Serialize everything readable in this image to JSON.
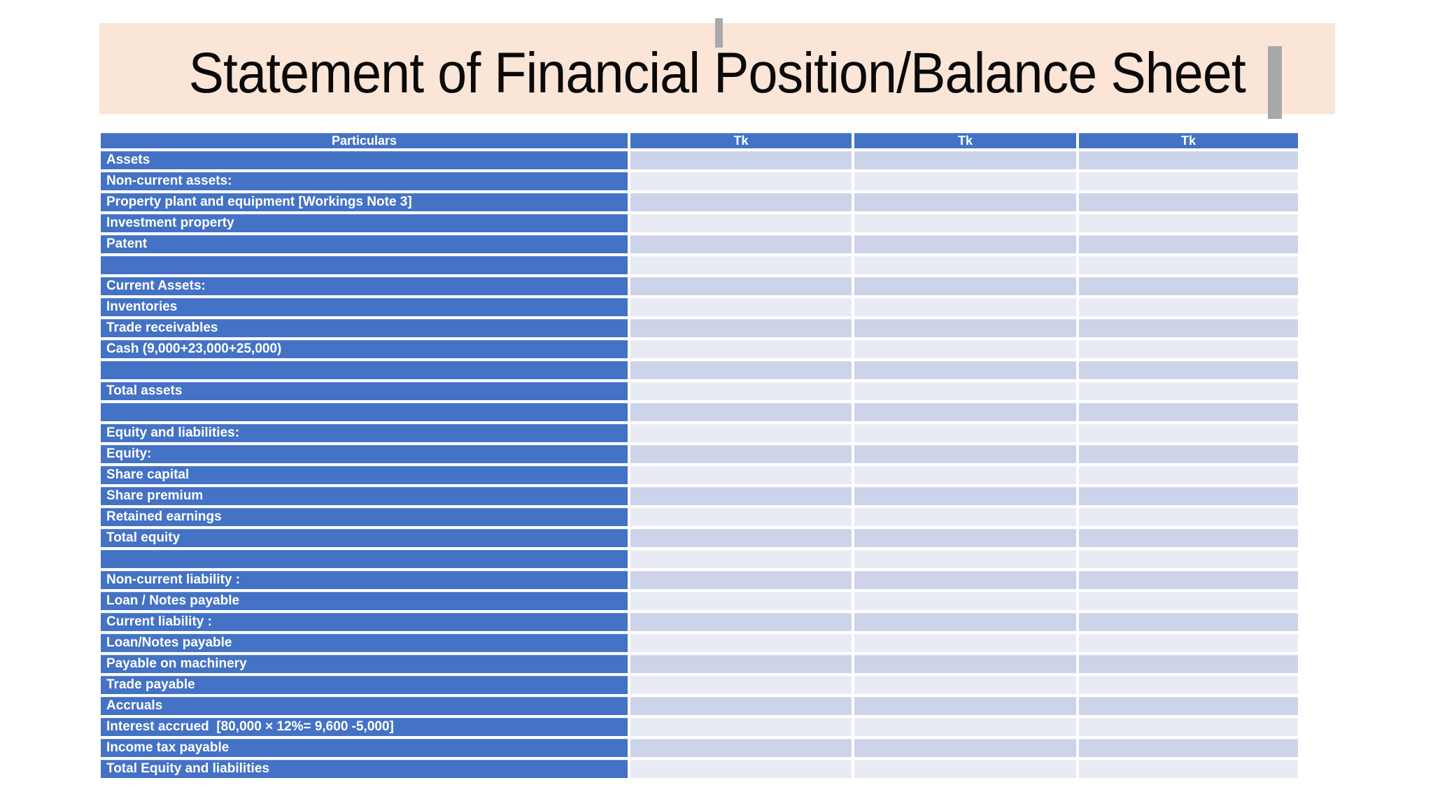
{
  "slide": {
    "title": "Statement of Financial Position/Balance Sheet",
    "title_band_color": "#fbe5d6",
    "marker_color": "#a9a9a9"
  },
  "table": {
    "header_bg": "#4472c4",
    "label_col_bg": "#4472c4",
    "band_dark": "#cdd3e8",
    "band_light": "#e9ebf4",
    "columns": [
      "Particulars",
      "Tk",
      "Tk",
      "Tk"
    ],
    "rows": [
      {
        "label": "Assets",
        "values": [
          "",
          "",
          ""
        ]
      },
      {
        "label": "Non-current assets:",
        "values": [
          "",
          "",
          ""
        ]
      },
      {
        "label": "Property plant and equipment [Workings Note 3]",
        "values": [
          "",
          "",
          ""
        ]
      },
      {
        "label": "Investment property",
        "values": [
          "",
          "",
          ""
        ]
      },
      {
        "label": "Patent",
        "values": [
          "",
          "",
          ""
        ]
      },
      {
        "label": "",
        "values": [
          "",
          "",
          ""
        ]
      },
      {
        "label": "Current Assets:",
        "values": [
          "",
          "",
          ""
        ]
      },
      {
        "label": "Inventories",
        "values": [
          "",
          "",
          ""
        ]
      },
      {
        "label": "Trade receivables",
        "values": [
          "",
          "",
          ""
        ]
      },
      {
        "label": "Cash (9,000+23,000+25,000)",
        "values": [
          "",
          "",
          ""
        ]
      },
      {
        "label": "",
        "values": [
          "",
          "",
          ""
        ]
      },
      {
        "label": "Total assets",
        "values": [
          "",
          "",
          ""
        ]
      },
      {
        "label": "",
        "values": [
          "",
          "",
          ""
        ]
      },
      {
        "label": "Equity and liabilities:",
        "values": [
          "",
          "",
          ""
        ]
      },
      {
        "label": "Equity:",
        "values": [
          "",
          "",
          ""
        ]
      },
      {
        "label": "Share capital",
        "values": [
          "",
          "",
          ""
        ]
      },
      {
        "label": "Share premium",
        "values": [
          "",
          "",
          ""
        ]
      },
      {
        "label": "Retained earnings",
        "values": [
          "",
          "",
          ""
        ]
      },
      {
        "label": "Total equity",
        "values": [
          "",
          "",
          ""
        ]
      },
      {
        "label": "",
        "values": [
          "",
          "",
          ""
        ]
      },
      {
        "label": "Non-current liability :",
        "values": [
          "",
          "",
          ""
        ]
      },
      {
        "label": "Loan / Notes payable",
        "values": [
          "",
          "",
          ""
        ]
      },
      {
        "label": "Current liability :",
        "values": [
          "",
          "",
          ""
        ]
      },
      {
        "label": "Loan/Notes payable",
        "values": [
          "",
          "",
          ""
        ]
      },
      {
        "label": "Payable on machinery",
        "values": [
          "",
          "",
          ""
        ]
      },
      {
        "label": "Trade payable",
        "values": [
          "",
          "",
          ""
        ]
      },
      {
        "label": "Accruals",
        "values": [
          "",
          "",
          ""
        ]
      },
      {
        "label": "Interest accrued  [80,000 × 12%= 9,600 -5,000]",
        "values": [
          "",
          "",
          ""
        ]
      },
      {
        "label": "Income tax payable",
        "values": [
          "",
          "",
          ""
        ]
      },
      {
        "label": "Total Equity and liabilities",
        "values": [
          "",
          "",
          ""
        ]
      }
    ]
  }
}
